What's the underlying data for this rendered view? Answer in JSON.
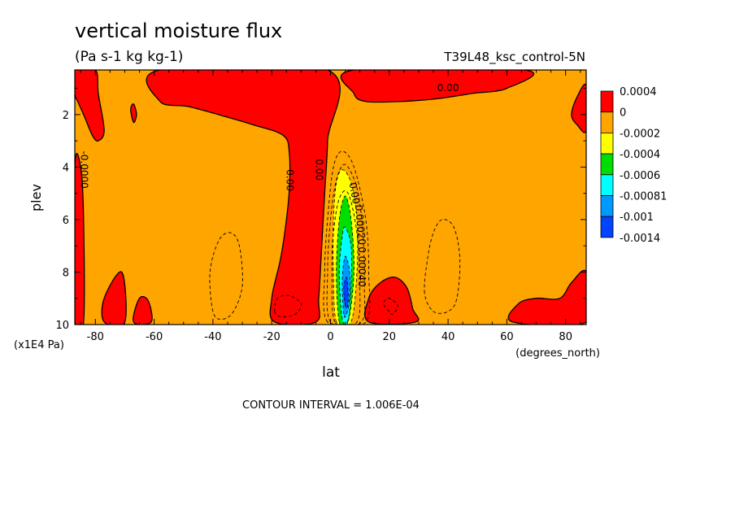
{
  "chart_data": {
    "type": "heatmap",
    "title": "vertical moisture flux",
    "units": "(Pa s-1 kg kg-1)",
    "dataset": "T39L48_ksc_control-5N",
    "xlabel": "lat",
    "x_units": "(degrees_north)",
    "ylabel": "plev",
    "y_units": "(x1E4 Pa)",
    "x_ticks": [
      "-80",
      "-60",
      "-40",
      "-20",
      "0",
      "20",
      "40",
      "60",
      "80"
    ],
    "x_tick_values": [
      -80,
      -60,
      -40,
      -20,
      0,
      20,
      40,
      60,
      80
    ],
    "y_ticks": [
      "2",
      "4",
      "6",
      "8",
      "10"
    ],
    "y_tick_values": [
      2,
      4,
      6,
      8,
      10
    ],
    "xlim": [
      -87,
      87
    ],
    "ylim": [
      10,
      0.3
    ],
    "contour_interval": "CONTOUR INTERVAL = 1.006E-04",
    "legend": {
      "placement": "right",
      "labels": [
        "0.0004",
        "0",
        "-0.0002",
        "-0.0004",
        "-0.0006",
        "-0.00081",
        "-0.001",
        "-0.0014"
      ],
      "colors": [
        "#ff0000",
        "#ffa500",
        "#ffff00",
        "#00dd00",
        "#00ffff",
        "#0099ff",
        "#0044ff"
      ]
    },
    "background_color": "#ffa500",
    "positive_regions": [
      {
        "name": "ITCZ tower",
        "points": [
          [
            -19,
            9.9
          ],
          [
            -20,
            9.0
          ],
          [
            -17,
            7.5
          ],
          [
            -15,
            6.0
          ],
          [
            -14,
            4.8
          ],
          [
            -14,
            3.5
          ],
          [
            -16,
            2.8
          ],
          [
            -26,
            2.4
          ],
          [
            -35,
            2.1
          ],
          [
            -48,
            1.7
          ],
          [
            -58,
            1.5
          ],
          [
            -58,
            0.3
          ],
          [
            -1,
            0.3
          ],
          [
            -1,
            3.0
          ],
          [
            -2,
            5.0
          ],
          [
            -3,
            7.0
          ],
          [
            -4,
            9.0
          ],
          [
            -5,
            9.9
          ]
        ]
      },
      {
        "name": "NH upper",
        "points": [
          [
            8,
            0.3
          ],
          [
            8,
            1.2
          ],
          [
            12,
            1.5
          ],
          [
            24,
            1.5
          ],
          [
            36,
            1.4
          ],
          [
            48,
            1.2
          ],
          [
            60,
            1.0
          ],
          [
            66,
            0.3
          ]
        ]
      },
      {
        "name": "SH polar strip",
        "points": [
          [
            -87,
            0.3
          ],
          [
            -80,
            0.3
          ],
          [
            -79,
            1.2
          ],
          [
            -77,
            2.6
          ],
          [
            -79,
            3.0
          ],
          [
            -81,
            2.8
          ],
          [
            -84,
            2.0
          ],
          [
            -86,
            1.5
          ],
          [
            -87,
            1.2
          ]
        ]
      },
      {
        "name": "SH polar edge",
        "points": [
          [
            -87,
            4.0
          ],
          [
            -85,
            4.0
          ],
          [
            -84,
            6.0
          ],
          [
            -84,
            9.9
          ],
          [
            -87,
            9.9
          ]
        ]
      },
      {
        "name": "SH surface",
        "points": [
          [
            -77,
            9.9
          ],
          [
            -77,
            9.0
          ],
          [
            -71,
            8.0
          ],
          [
            -70,
            9.9
          ]
        ]
      },
      {
        "name": "SH surface 2",
        "points": [
          [
            -67,
            9.9
          ],
          [
            -65,
            9.0
          ],
          [
            -62,
            9.1
          ],
          [
            -61,
            9.9
          ]
        ]
      },
      {
        "name": "SH small",
        "points": [
          [
            -67,
            2.3
          ],
          [
            -68,
            1.8
          ],
          [
            -67,
            1.6
          ],
          [
            -66,
            2.0
          ]
        ]
      },
      {
        "name": "NH surface",
        "points": [
          [
            13,
            9.9
          ],
          [
            13,
            9.0
          ],
          [
            17,
            8.4
          ],
          [
            22,
            8.2
          ],
          [
            26,
            8.6
          ],
          [
            28,
            9.4
          ],
          [
            29,
            9.9
          ]
        ]
      },
      {
        "name": "NH surface polar",
        "points": [
          [
            62,
            9.9
          ],
          [
            64,
            9.2
          ],
          [
            70,
            9.0
          ],
          [
            78,
            9.0
          ],
          [
            82,
            8.4
          ],
          [
            87,
            8.0
          ],
          [
            87,
            9.9
          ]
        ]
      },
      {
        "name": "NH polar edge",
        "points": [
          [
            87,
            0.9
          ],
          [
            84,
            1.3
          ],
          [
            82,
            2.0
          ],
          [
            84,
            2.4
          ],
          [
            87,
            2.6
          ]
        ]
      }
    ],
    "negative_bands": [
      {
        "color": "#ffff00",
        "points": [
          [
            2,
            9.9
          ],
          [
            1,
            8.0
          ],
          [
            1,
            6.0
          ],
          [
            2,
            4.6
          ],
          [
            4,
            4.1
          ],
          [
            7,
            4.6
          ],
          [
            9,
            6.0
          ],
          [
            9,
            8.0
          ],
          [
            7,
            9.9
          ]
        ]
      },
      {
        "color": "#00dd00",
        "points": [
          [
            3,
            9.9
          ],
          [
            2,
            8.0
          ],
          [
            3,
            6.0
          ],
          [
            5,
            5.1
          ],
          [
            7,
            6.0
          ],
          [
            8,
            8.0
          ],
          [
            6,
            9.9
          ]
        ]
      },
      {
        "color": "#00ffff",
        "points": [
          [
            4,
            9.8
          ],
          [
            3,
            8.0
          ],
          [
            4,
            6.6
          ],
          [
            5,
            6.3
          ],
          [
            7,
            7.0
          ],
          [
            7,
            8.5
          ],
          [
            6,
            9.8
          ]
        ]
      },
      {
        "color": "#0099ff",
        "points": [
          [
            4.5,
            9.6
          ],
          [
            4,
            8.3
          ],
          [
            5,
            7.4
          ],
          [
            6.5,
            8.0
          ],
          [
            6.5,
            9.0
          ],
          [
            5.5,
            9.6
          ]
        ]
      },
      {
        "color": "#0044ff",
        "points": [
          [
            5,
            9.3
          ],
          [
            4.5,
            8.6
          ],
          [
            5.5,
            8.2
          ],
          [
            6,
            8.8
          ],
          [
            5.8,
            9.3
          ]
        ]
      }
    ],
    "dashed_contours": [
      {
        "points": [
          [
            -1,
            9.9
          ],
          [
            -2,
            8.0
          ],
          [
            -1,
            6.0
          ],
          [
            1,
            4.0
          ],
          [
            4,
            3.4
          ],
          [
            8,
            4.0
          ],
          [
            12,
            6.0
          ],
          [
            13,
            8.0
          ],
          [
            12,
            9.9
          ]
        ]
      },
      {
        "points": [
          [
            0,
            9.9
          ],
          [
            -1,
            8.0
          ],
          [
            0,
            6.0
          ],
          [
            2,
            4.5
          ],
          [
            5,
            3.9
          ],
          [
            9,
            4.8
          ],
          [
            11,
            6.5
          ],
          [
            11.5,
            8.5
          ],
          [
            10.5,
            9.9
          ]
        ]
      },
      {
        "points": [
          [
            1.5,
            9.9
          ],
          [
            0.5,
            8.0
          ],
          [
            1,
            6.5
          ],
          [
            3,
            5.2
          ],
          [
            6,
            5.0
          ],
          [
            9,
            6.5
          ],
          [
            10,
            8.5
          ],
          [
            9,
            9.9
          ]
        ]
      },
      {
        "points": [
          [
            -40,
            9.5
          ],
          [
            -41,
            8.0
          ],
          [
            -38,
            6.8
          ],
          [
            -34,
            6.5
          ],
          [
            -31,
            7.0
          ],
          [
            -30,
            8.5
          ],
          [
            -33,
            9.5
          ],
          [
            -37,
            9.8
          ]
        ]
      },
      {
        "points": [
          [
            32,
            8.8
          ],
          [
            33,
            7.5
          ],
          [
            35,
            6.5
          ],
          [
            38,
            6.0
          ],
          [
            42,
            6.3
          ],
          [
            44,
            7.5
          ],
          [
            43,
            9.0
          ],
          [
            40,
            9.5
          ],
          [
            35,
            9.5
          ]
        ]
      },
      {
        "points": [
          [
            -19,
            9.5
          ],
          [
            -18,
            9.0
          ],
          [
            -14,
            8.9
          ],
          [
            -10,
            9.2
          ],
          [
            -12,
            9.6
          ],
          [
            -17,
            9.7
          ]
        ]
      },
      {
        "points": [
          [
            20,
            9.5
          ],
          [
            18,
            9.2
          ],
          [
            20,
            9.0
          ],
          [
            23,
            9.3
          ],
          [
            21,
            9.6
          ]
        ]
      }
    ],
    "contour_labels": [
      {
        "text": "0.00",
        "lat": -14,
        "plev": 4.5,
        "rotate": 90
      },
      {
        "text": "0.00",
        "lat": -4,
        "plev": 4.1,
        "rotate": 90
      },
      {
        "text": "-0.0000",
        "lat": -84,
        "plev": 4.1,
        "rotate": 90
      },
      {
        "text": "0.00",
        "lat": 40,
        "plev": 1.0,
        "rotate": 0
      },
      {
        "text": "0.00",
        "lat": 8,
        "plev": 5.0,
        "rotate": 80
      },
      {
        "text": "0.00020",
        "lat": 10,
        "plev": 6.2,
        "rotate": 85
      },
      {
        "text": "0.00040",
        "lat": 10.5,
        "plev": 7.8,
        "rotate": 90
      }
    ]
  }
}
